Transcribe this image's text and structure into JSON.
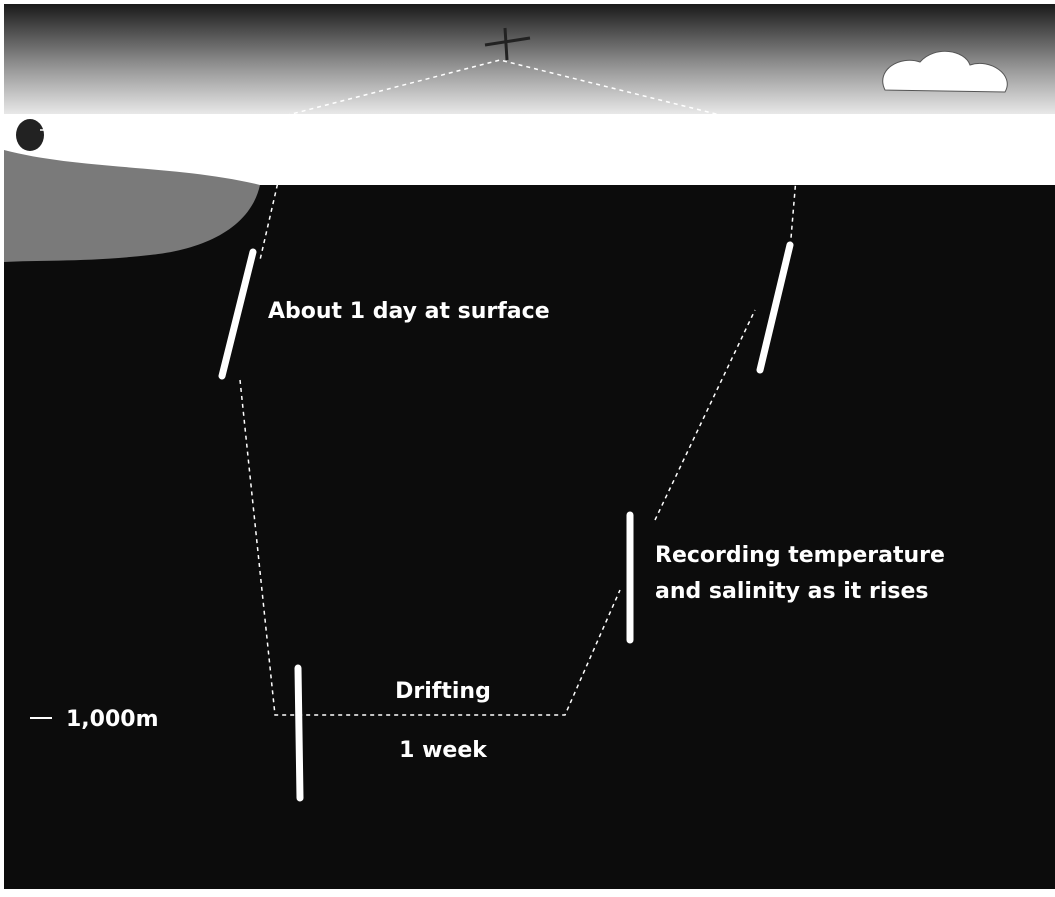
{
  "labels": {
    "surface": "About 1 day at surface",
    "rising_line1": "Recording temperature",
    "rising_line2": "and salinity as it rises",
    "drifting": "Drifting",
    "duration": "1 week",
    "depth": "1,000m"
  }
}
